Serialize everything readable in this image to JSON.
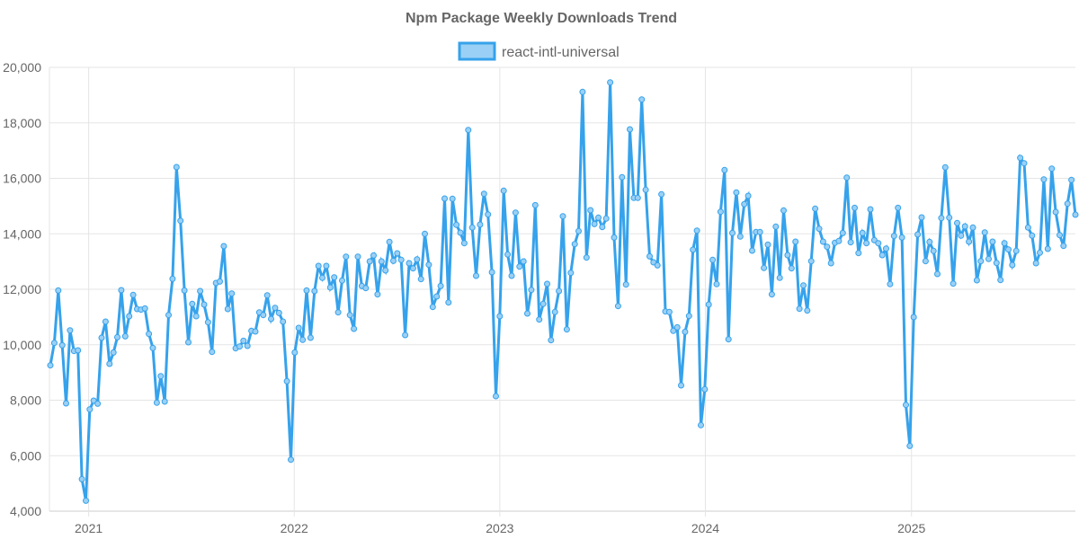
{
  "chart_data": {
    "type": "line",
    "title": "Npm Package Weekly Downloads Trend",
    "xlabel": "",
    "ylabel": "",
    "ylim": [
      4000,
      20000
    ],
    "yticks": [
      "4,000",
      "6,000",
      "8,000",
      "10,000",
      "12,000",
      "14,000",
      "16,000",
      "18,000",
      "20,000"
    ],
    "xticks": [
      "2021",
      "2022",
      "2023",
      "2024",
      "2025"
    ],
    "grid": true,
    "legend_position": "top",
    "colors": {
      "line": "#36a2eb",
      "fill": "#9ad0f5",
      "grid": "#e5e5e5",
      "text": "#666666"
    },
    "series": [
      {
        "name": "react-intl-universal",
        "x": [
          "2020-10-25",
          "2020-11-01",
          "2020-11-08",
          "2020-11-15",
          "2020-11-22",
          "2020-11-29",
          "2020-12-06",
          "2020-12-13",
          "2020-12-20",
          "2020-12-27",
          "2021-01-03",
          "2021-01-10",
          "2021-01-17",
          "2021-01-24",
          "2021-01-31",
          "2021-02-07",
          "2021-02-14",
          "2021-02-21",
          "2021-02-28",
          "2021-03-07",
          "2021-03-14",
          "2021-03-21",
          "2021-03-28",
          "2021-04-04",
          "2021-04-11",
          "2021-04-18",
          "2021-04-25",
          "2021-05-02",
          "2021-05-09",
          "2021-05-16",
          "2021-05-23",
          "2021-05-30",
          "2021-06-06",
          "2021-06-13",
          "2021-06-20",
          "2021-06-27",
          "2021-07-04",
          "2021-07-11",
          "2021-07-18",
          "2021-07-25",
          "2021-08-01",
          "2021-08-08",
          "2021-08-15",
          "2021-08-22",
          "2021-08-29",
          "2021-09-05",
          "2021-09-12",
          "2021-09-19",
          "2021-09-26",
          "2021-10-03",
          "2021-10-10",
          "2021-10-17",
          "2021-10-24",
          "2021-10-31",
          "2021-11-07",
          "2021-11-14",
          "2021-11-21",
          "2021-11-28",
          "2021-12-05",
          "2021-12-12",
          "2021-12-19",
          "2021-12-26",
          "2022-01-02",
          "2022-01-09",
          "2022-01-16",
          "2022-01-23",
          "2022-01-30",
          "2022-02-06",
          "2022-02-13",
          "2022-02-20",
          "2022-02-27",
          "2022-03-06",
          "2022-03-13",
          "2022-03-20",
          "2022-03-27",
          "2022-04-03",
          "2022-04-10",
          "2022-04-17",
          "2022-04-24",
          "2022-05-01",
          "2022-05-08",
          "2022-05-15",
          "2022-05-22",
          "2022-05-29",
          "2022-06-05",
          "2022-06-12",
          "2022-06-19",
          "2022-06-26",
          "2022-07-03",
          "2022-07-10",
          "2022-07-17",
          "2022-07-24",
          "2022-07-31",
          "2022-08-07",
          "2022-08-14",
          "2022-08-21",
          "2022-08-28",
          "2022-09-04",
          "2022-09-11",
          "2022-09-18",
          "2022-09-25",
          "2022-10-02",
          "2022-10-09",
          "2022-10-16",
          "2022-10-23",
          "2022-10-30",
          "2022-11-06",
          "2022-11-13",
          "2022-11-20",
          "2022-11-27",
          "2022-12-04",
          "2022-12-11",
          "2022-12-18",
          "2022-12-25",
          "2023-01-01",
          "2023-01-08",
          "2023-01-15",
          "2023-01-22",
          "2023-01-29",
          "2023-02-05",
          "2023-02-12",
          "2023-02-19",
          "2023-02-26",
          "2023-03-05",
          "2023-03-12",
          "2023-03-19",
          "2023-03-26",
          "2023-04-02",
          "2023-04-09",
          "2023-04-16",
          "2023-04-23",
          "2023-04-30",
          "2023-05-07",
          "2023-05-14",
          "2023-05-21",
          "2023-05-28",
          "2023-06-04",
          "2023-06-11",
          "2023-06-18",
          "2023-06-25",
          "2023-07-02",
          "2023-07-09",
          "2023-07-16",
          "2023-07-23",
          "2023-07-30",
          "2023-08-06",
          "2023-08-13",
          "2023-08-20",
          "2023-08-27",
          "2023-09-03",
          "2023-09-10",
          "2023-09-17",
          "2023-09-24",
          "2023-10-01",
          "2023-10-08",
          "2023-10-15",
          "2023-10-22",
          "2023-10-29",
          "2023-11-05",
          "2023-11-12",
          "2023-11-19",
          "2023-11-26",
          "2023-12-03",
          "2023-12-10",
          "2023-12-17",
          "2023-12-24",
          "2023-12-31",
          "2024-01-07",
          "2024-01-14",
          "2024-01-21",
          "2024-01-28",
          "2024-02-04",
          "2024-02-11",
          "2024-02-18",
          "2024-02-25",
          "2024-03-03",
          "2024-03-10",
          "2024-03-17",
          "2024-03-24",
          "2024-03-31",
          "2024-04-07",
          "2024-04-14",
          "2024-04-21",
          "2024-04-28",
          "2024-05-05",
          "2024-05-12",
          "2024-05-19",
          "2024-05-26",
          "2024-06-02",
          "2024-06-09",
          "2024-06-16",
          "2024-06-23",
          "2024-06-30",
          "2024-07-07",
          "2024-07-14",
          "2024-07-21",
          "2024-07-28",
          "2024-08-04",
          "2024-08-11",
          "2024-08-18",
          "2024-08-25",
          "2024-09-01",
          "2024-09-08",
          "2024-09-15",
          "2024-09-22",
          "2024-09-29",
          "2024-10-06",
          "2024-10-13",
          "2024-10-20",
          "2024-10-27",
          "2024-11-03",
          "2024-11-10",
          "2024-11-17",
          "2024-11-24",
          "2024-12-01",
          "2024-12-08",
          "2024-12-15",
          "2024-12-22",
          "2024-12-29",
          "2025-01-05",
          "2025-01-12",
          "2025-01-19",
          "2025-01-26",
          "2025-02-02",
          "2025-02-09",
          "2025-02-16",
          "2025-02-23",
          "2025-03-02",
          "2025-03-09",
          "2025-03-16",
          "2025-03-23",
          "2025-03-30",
          "2025-04-06",
          "2025-04-13",
          "2025-04-20",
          "2025-04-27",
          "2025-05-04",
          "2025-05-11",
          "2025-05-18",
          "2025-05-25",
          "2025-06-01",
          "2025-06-08",
          "2025-06-15",
          "2025-06-22",
          "2025-06-29",
          "2025-07-06",
          "2025-07-13",
          "2025-07-20",
          "2025-07-27",
          "2025-08-03",
          "2025-08-10",
          "2025-08-17",
          "2025-08-24",
          "2025-08-31",
          "2025-09-07",
          "2025-09-14",
          "2025-09-21",
          "2025-09-28",
          "2025-10-05",
          "2025-10-12",
          "2025-10-19"
        ],
        "values": [
          9257,
          10067,
          11956,
          9980,
          7886,
          10520,
          9775,
          9797,
          5154,
          4377,
          7670,
          7983,
          7875,
          10250,
          10833,
          9311,
          9721,
          10272,
          11967,
          10304,
          11028,
          11795,
          11287,
          11265,
          11308,
          10390,
          9883,
          7908,
          8868,
          7951,
          11071,
          12377,
          16405,
          14472,
          11956,
          10089,
          11471,
          11028,
          11935,
          11449,
          10812,
          9743,
          12226,
          12280,
          13554,
          11287,
          11849,
          9872,
          9937,
          10142,
          9959,
          10499,
          10477,
          11168,
          11071,
          11784,
          10931,
          11330,
          11146,
          10833,
          8685,
          5856,
          9721,
          10607,
          10175,
          11956,
          10250,
          11935,
          12842,
          12410,
          12842,
          12064,
          12432,
          11168,
          12313,
          13176,
          11071,
          10575,
          13176,
          12118,
          12043,
          13004,
          13219,
          11816,
          13004,
          12680,
          13706,
          13025,
          13295,
          13058,
          10347,
          12939,
          12755,
          13079,
          12366,
          13997,
          12885,
          11363,
          11740,
          12118,
          15271,
          11525,
          15260,
          14321,
          14040,
          13662,
          17744,
          14224,
          12485,
          14332,
          15444,
          14699,
          12615,
          8145,
          11028,
          15552,
          13252,
          12485,
          14764,
          12820,
          13004,
          11125,
          11978,
          15033,
          10909,
          11471,
          12194,
          10164,
          11179,
          11935,
          14634,
          10553,
          12593,
          13630,
          14094,
          19115,
          13144,
          14850,
          14353,
          14580,
          14245,
          14548,
          19460,
          13867,
          11395,
          16038,
          12172,
          17765,
          15293,
          15293,
          18845,
          15584,
          13187,
          12971,
          12863,
          15422,
          11201,
          11179,
          10499,
          10628,
          8534,
          10466,
          11039,
          13425,
          14116,
          7098,
          8393,
          11449,
          13058,
          12183,
          14796,
          16297,
          10197,
          14029,
          15487,
          13900,
          15066,
          15368,
          13392,
          14062,
          14062,
          12766,
          13608,
          11816,
          14256,
          12410,
          14839,
          13230,
          12755,
          13716,
          11298,
          12140,
          11233,
          13015,
          14904,
          14181,
          13716,
          13533,
          12939,
          13673,
          13738,
          14029,
          16027,
          13695,
          14936,
          13306,
          14029,
          13662,
          14882,
          13770,
          13662,
          13230,
          13468,
          12183,
          13921,
          14936,
          13867,
          7832,
          6353,
          10995,
          13975,
          14591,
          13015,
          13706,
          13382,
          12550,
          14569,
          16394,
          14580,
          12205,
          14386,
          13932,
          14267,
          13716,
          14224,
          12324,
          13015,
          14051,
          13090,
          13716,
          12950,
          12334,
          13662,
          13436,
          12874,
          13382,
          16739,
          16545,
          14224,
          13932,
          12939,
          13317,
          15962,
          13457,
          16351,
          14785,
          13954,
          13565,
          15087,
          15941,
          14688
        ]
      }
    ]
  }
}
